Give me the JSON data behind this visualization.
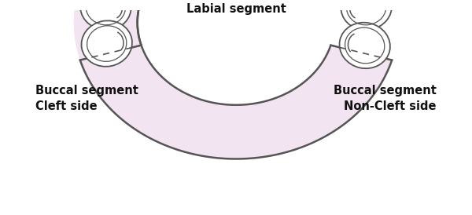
{
  "bg_color": "#ffffff",
  "pink_fill": "#f2e4f0",
  "tooth_fill": "#ffffff",
  "tooth_outline": "#555555",
  "arch_color": "#555555",
  "dash_color": "#555555",
  "label_labial": "Labial segment",
  "label_buccal_cleft": "Buccal segment\nCleft side",
  "label_buccal_noncleft": "Buccal segment\nNon-Cleft side",
  "label_fontsize": 10.5,
  "label_fontweight": "bold",
  "figsize": [
    6.0,
    2.74
  ],
  "dpi": 100
}
